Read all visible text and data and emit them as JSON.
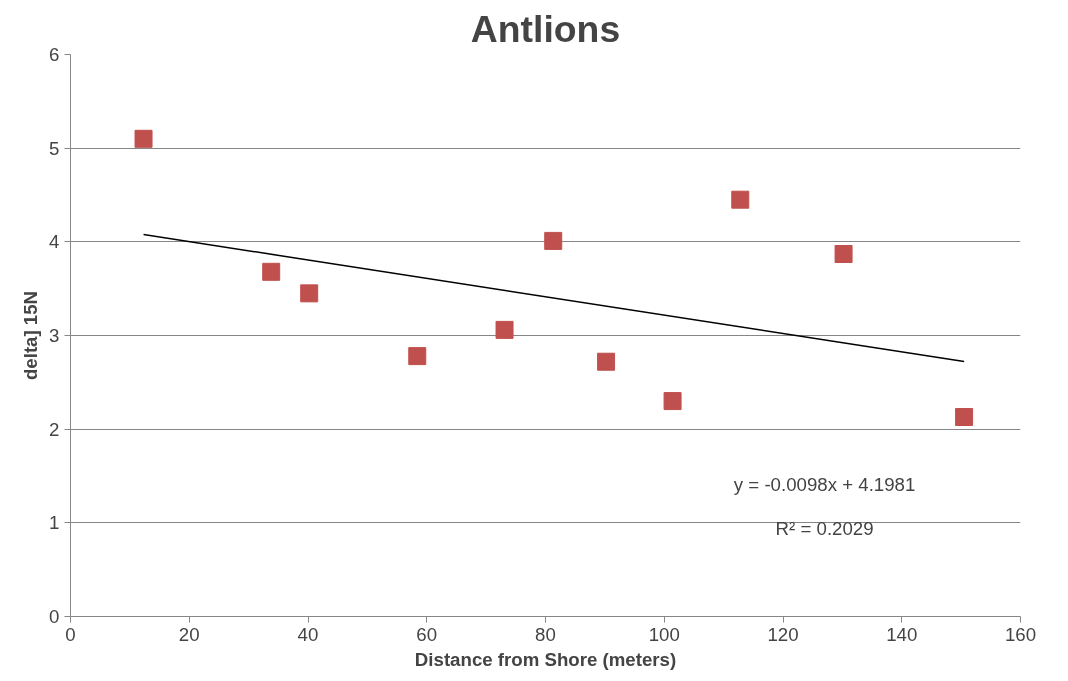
{
  "chart_data": {
    "type": "scatter",
    "title": "Antlions",
    "xlabel": "Distance from Shore (meters)",
    "ylabel": "delta] 15N",
    "xlim": [
      0,
      160
    ],
    "ylim": [
      0,
      6
    ],
    "xticks": [
      0,
      20,
      40,
      60,
      80,
      100,
      120,
      140,
      160
    ],
    "yticks": [
      0,
      1,
      2,
      3,
      4,
      5,
      6
    ],
    "grid": "y",
    "marker": "square",
    "series": [
      {
        "color": "#c0504d",
        "x": [
          12.3,
          33.8,
          40.2,
          58.4,
          73.1,
          81.3,
          90.2,
          101.4,
          112.8,
          130.2,
          150.5
        ],
        "values": [
          5.1,
          3.68,
          3.45,
          2.78,
          3.06,
          4.01,
          2.72,
          2.3,
          4.45,
          3.87,
          2.13
        ]
      },
      {
        "type": "line",
        "color": "#000000",
        "marker": "none",
        "x": [
          12.3,
          150.5
        ],
        "values": [
          4.078,
          2.723
        ]
      }
    ],
    "annotations": [
      "y = -0.0098x + 4.1981",
      "R² = 0.2029"
    ]
  }
}
